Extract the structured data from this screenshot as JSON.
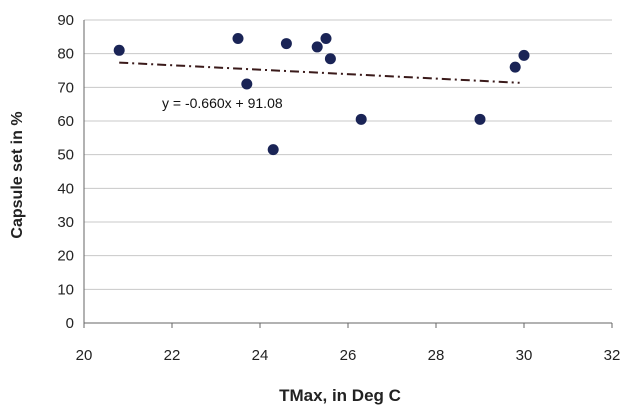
{
  "chart_data": {
    "type": "scatter",
    "xlabel": "TMax, in Deg C",
    "ylabel": "Capsule set in %",
    "xlim": [
      20,
      32
    ],
    "ylim": [
      0,
      90
    ],
    "x_ticks": [
      20,
      22,
      24,
      26,
      28,
      30,
      32
    ],
    "y_ticks": [
      0,
      10,
      20,
      30,
      40,
      50,
      60,
      70,
      80,
      90
    ],
    "grid": "horizontal",
    "marker_color": "#1a2456",
    "series": [
      {
        "points": [
          {
            "x": 20.8,
            "y": 81
          },
          {
            "x": 23.5,
            "y": 84.5
          },
          {
            "x": 23.7,
            "y": 71
          },
          {
            "x": 24.3,
            "y": 51.5
          },
          {
            "x": 24.6,
            "y": 83
          },
          {
            "x": 25.3,
            "y": 82
          },
          {
            "x": 25.5,
            "y": 84.5
          },
          {
            "x": 25.6,
            "y": 78.5
          },
          {
            "x": 26.3,
            "y": 60.5
          },
          {
            "x": 29.0,
            "y": 60.5
          },
          {
            "x": 29.8,
            "y": 76
          },
          {
            "x": 30.0,
            "y": 79.5
          }
        ]
      }
    ],
    "trendline": {
      "slope": -0.66,
      "intercept": 91.08,
      "x_range": [
        20.8,
        29.9
      ],
      "color": "#3a1a1a",
      "style": "dash-dot",
      "equation_label": "y = -0.660x + 91.08"
    }
  }
}
